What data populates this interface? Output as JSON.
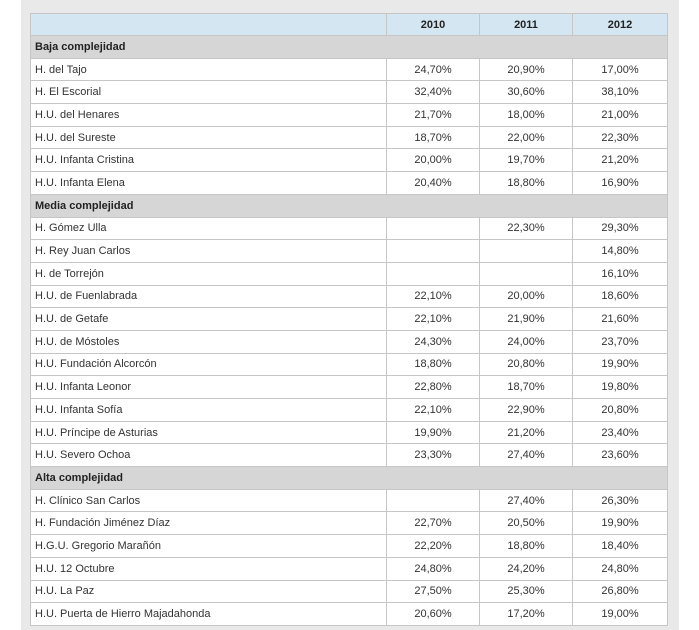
{
  "columns": [
    "",
    "2010",
    "2011",
    "2012"
  ],
  "groups": [
    {
      "title": "Baja complejidad",
      "rows": [
        {
          "name": "H. del Tajo",
          "v": [
            "24,70%",
            "20,90%",
            "17,00%"
          ]
        },
        {
          "name": "H. El Escorial",
          "v": [
            "32,40%",
            "30,60%",
            "38,10%"
          ]
        },
        {
          "name": "H.U. del Henares",
          "v": [
            "21,70%",
            "18,00%",
            "21,00%"
          ]
        },
        {
          "name": "H.U. del Sureste",
          "v": [
            "18,70%",
            "22,00%",
            "22,30%"
          ]
        },
        {
          "name": "H.U. Infanta Cristina",
          "v": [
            "20,00%",
            "19,70%",
            "21,20%"
          ]
        },
        {
          "name": "H.U. Infanta Elena",
          "v": [
            "20,40%",
            "18,80%",
            "16,90%"
          ]
        }
      ]
    },
    {
      "title": "Media complejidad",
      "rows": [
        {
          "name": "H. Gómez Ulla",
          "v": [
            "",
            "22,30%",
            "29,30%"
          ]
        },
        {
          "name": "H. Rey Juan Carlos",
          "v": [
            "",
            "",
            "14,80%"
          ]
        },
        {
          "name": "H. de Torrejón",
          "v": [
            "",
            "",
            "16,10%"
          ]
        },
        {
          "name": "H.U. de Fuenlabrada",
          "v": [
            "22,10%",
            "20,00%",
            "18,60%"
          ]
        },
        {
          "name": "H.U. de Getafe",
          "v": [
            "22,10%",
            "21,90%",
            "21,60%"
          ]
        },
        {
          "name": "H.U. de Móstoles",
          "v": [
            "24,30%",
            "24,00%",
            "23,70%"
          ]
        },
        {
          "name": "H.U. Fundación Alcorcón",
          "v": [
            "18,80%",
            "20,80%",
            "19,90%"
          ]
        },
        {
          "name": "H.U. Infanta Leonor",
          "v": [
            "22,80%",
            "18,70%",
            "19,80%"
          ]
        },
        {
          "name": "H.U. Infanta Sofía",
          "v": [
            "22,10%",
            "22,90%",
            "20,80%"
          ]
        },
        {
          "name": "H.U. Príncipe de Asturias",
          "v": [
            "19,90%",
            "21,20%",
            "23,40%"
          ]
        },
        {
          "name": "H.U. Severo Ochoa",
          "v": [
            "23,30%",
            "27,40%",
            "23,60%"
          ]
        }
      ]
    },
    {
      "title": "Alta complejidad",
      "rows": [
        {
          "name": "H. Clínico San Carlos",
          "v": [
            "",
            "27,40%",
            "26,30%"
          ]
        },
        {
          "name": "H. Fundación Jiménez Díaz",
          "v": [
            "22,70%",
            "20,50%",
            "19,90%"
          ]
        },
        {
          "name": "H.G.U. Gregorio Marañón",
          "v": [
            "22,20%",
            "18,80%",
            "18,40%"
          ]
        },
        {
          "name": "H.U. 12 Octubre",
          "v": [
            "24,80%",
            "24,20%",
            "24,80%"
          ]
        },
        {
          "name": "H.U. La Paz",
          "v": [
            "27,50%",
            "25,30%",
            "26,80%"
          ]
        },
        {
          "name": "H.U. Puerta de Hierro Majadahonda",
          "v": [
            "20,60%",
            "17,20%",
            "19,00%"
          ]
        }
      ]
    }
  ]
}
